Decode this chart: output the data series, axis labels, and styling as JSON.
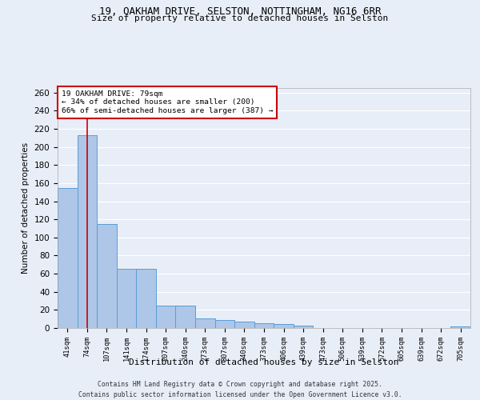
{
  "title1": "19, OAKHAM DRIVE, SELSTON, NOTTINGHAM, NG16 6RR",
  "title2": "Size of property relative to detached houses in Selston",
  "xlabel": "Distribution of detached houses by size in Selston",
  "ylabel": "Number of detached properties",
  "categories": [
    "41sqm",
    "74sqm",
    "107sqm",
    "141sqm",
    "174sqm",
    "207sqm",
    "240sqm",
    "273sqm",
    "307sqm",
    "340sqm",
    "373sqm",
    "406sqm",
    "439sqm",
    "473sqm",
    "506sqm",
    "539sqm",
    "572sqm",
    "605sqm",
    "639sqm",
    "672sqm",
    "705sqm"
  ],
  "values": [
    155,
    213,
    115,
    65,
    65,
    25,
    25,
    11,
    9,
    7,
    5,
    4,
    3,
    0,
    0,
    0,
    0,
    0,
    0,
    0,
    2
  ],
  "bar_color": "#aec6e8",
  "bar_edge_color": "#5a9fd4",
  "bg_color": "#e8eef8",
  "grid_color": "#ffffff",
  "vline_x": 1.0,
  "vline_color": "#cc0000",
  "annotation_text": "19 OAKHAM DRIVE: 79sqm\n← 34% of detached houses are smaller (200)\n66% of semi-detached houses are larger (387) →",
  "annotation_box_color": "#cc0000",
  "ylim": [
    0,
    265
  ],
  "yticks": [
    0,
    20,
    40,
    60,
    80,
    100,
    120,
    140,
    160,
    180,
    200,
    220,
    240,
    260
  ],
  "footer1": "Contains HM Land Registry data © Crown copyright and database right 2025.",
  "footer2": "Contains public sector information licensed under the Open Government Licence v3.0."
}
